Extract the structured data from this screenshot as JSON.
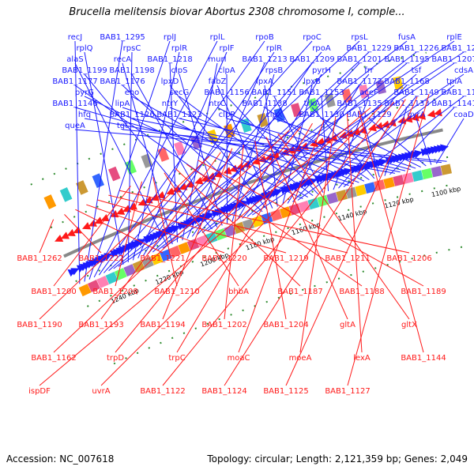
{
  "title": "Brucella melitensis biovar Abortus 2308 chromosome I, comple...",
  "footer": {
    "accession": "Accession: NC_007618",
    "topology": "Topology: circular; Length: 2,121,359 bp; Genes: 2,049"
  },
  "scale_labels": [
    "1240 kbp",
    "1220 kbp",
    "1200 kbp",
    "1180 kbp",
    "1160 kbp",
    "1140 kbp",
    "1120 kbp",
    "1100 kbp"
  ],
  "colors": {
    "forward": "#1a1aff",
    "reverse": "#ff1a1a",
    "backbone": "#888888",
    "tick": "#2e8b2e"
  },
  "forward_labels": [
    "recJ",
    "BAB1_1295",
    "rplJ",
    "rplL",
    "rpoB",
    "rpoC",
    "rpsL",
    "fusA",
    "rplE",
    "rplQ",
    "rpsC",
    "rplR",
    "rplF",
    "rplR",
    "rpoA",
    "BAB1_1229",
    "BAB1_1226",
    "BAB1_1225",
    "alaS",
    "recA",
    "BAB1_1218",
    "murI",
    "BAB1_1213",
    "BAB1_1209",
    "BAB1_1201",
    "BAB1_1195",
    "BAB1_1207",
    "BAB1_1199",
    "BAB1_1198",
    "clpS",
    "clpA",
    "rpsB",
    "pyrH",
    "frr",
    "tsf",
    "cdsA",
    "BAB1_1177",
    "BAB1_1176",
    "lpxD",
    "fabZ",
    "lpxA",
    "lpxB",
    "BAB1_1172",
    "BAB1_1168",
    "tpiA",
    "pyrG",
    "eno",
    "secG",
    "BAB1_1156",
    "BAB1_1151",
    "BAB1_1153",
    "aceF",
    "BAB1_1149",
    "BAB1_1148",
    "BAB1_1146",
    "lipA",
    "ntrY",
    "ntrC",
    "BAB1_1138",
    "trkA",
    "BAB1_1135",
    "BAB1_1133",
    "BAB1_1141",
    "hfq",
    "BAB1_1126",
    "BAB1_1123",
    "clpP",
    "clpX",
    "BAB1_1130",
    "BAB1_1129",
    "gyrA",
    "coaD",
    "queA",
    "tgt"
  ],
  "reverse_labels": [
    "BAB1_1262",
    "BAB1_1222",
    "BAB1_1221",
    "BAB1_1220",
    "BAB1_1219",
    "BAB1_1211",
    "BAB1_1206",
    "BAB1_1200",
    "BAB1_1208",
    "BAB1_1210",
    "bhbA",
    "BAB1_1187",
    "BAB1_1188",
    "BAB1_1189",
    "BAB1_1190",
    "BAB1_1193",
    "BAB1_1194",
    "BAB1_1202",
    "BAB1_1204",
    "gltA",
    "gltX",
    "BAB1_1162",
    "trpD",
    "trpC",
    "moaC",
    "moeA",
    "lexA",
    "BAB1_1144",
    "ispDF",
    "uvrA",
    "BAB1_1122",
    "BAB1_1124",
    "BAB1_1125",
    "BAB1_1127"
  ]
}
